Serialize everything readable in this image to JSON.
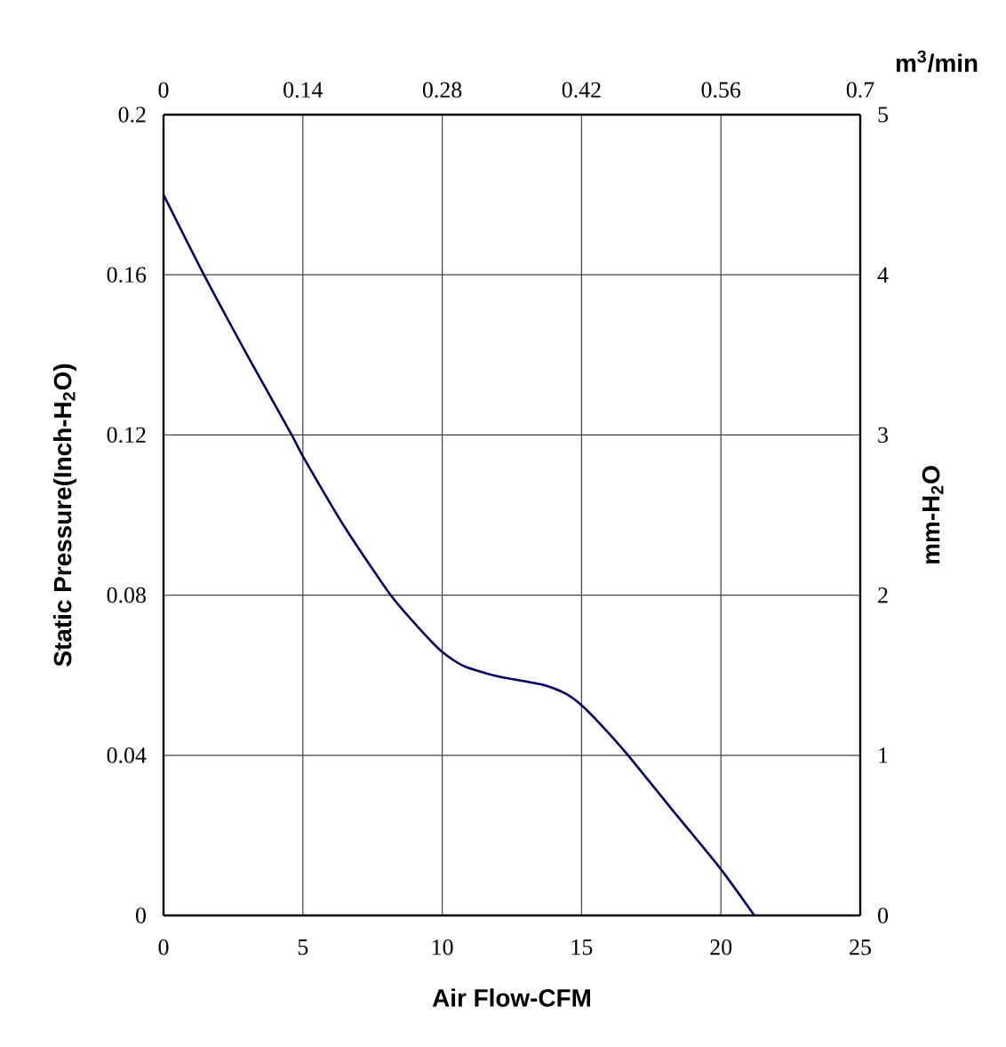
{
  "chart_data": {
    "type": "line",
    "xlabel": "Air Flow-CFM",
    "ylabel": "Static Pressure(Inch-H$_{2}$O)",
    "y2label": "mm-H$_{2}$O",
    "x2label": "m$^{3}$/min",
    "xlim": [
      0,
      25
    ],
    "xticks": [
      0,
      5,
      10,
      15,
      20,
      25
    ],
    "ylim": [
      0,
      0.2
    ],
    "yticks": [
      0,
      0.04,
      0.08,
      0.12,
      0.16,
      0.2
    ],
    "x2lim": [
      0,
      0.7
    ],
    "x2ticks": [
      0,
      0.14,
      0.28,
      0.42,
      0.56,
      0.7
    ],
    "y2lim": [
      0,
      5
    ],
    "y2ticks": [
      0,
      1,
      2,
      3,
      4,
      5
    ],
    "grid": true,
    "marker": "none",
    "line_style": "solid",
    "series": [
      {
        "color": "#000066",
        "x": [
          0,
          1.45,
          3.0,
          4.6,
          5.0,
          6.5,
          8.15,
          9.2,
          10.0,
          10.8,
          12.07,
          13.56,
          14.4,
          15.0,
          15.7,
          16.67,
          18.3,
          19.96,
          21.2
        ],
        "values": [
          0.18,
          0.16,
          0.14,
          0.12,
          0.1147,
          0.097,
          0.08,
          0.0715,
          0.0658,
          0.0622,
          0.0596,
          0.0577,
          0.0555,
          0.0525,
          0.0476,
          0.04,
          0.026,
          0.0119,
          0
        ]
      }
    ]
  }
}
